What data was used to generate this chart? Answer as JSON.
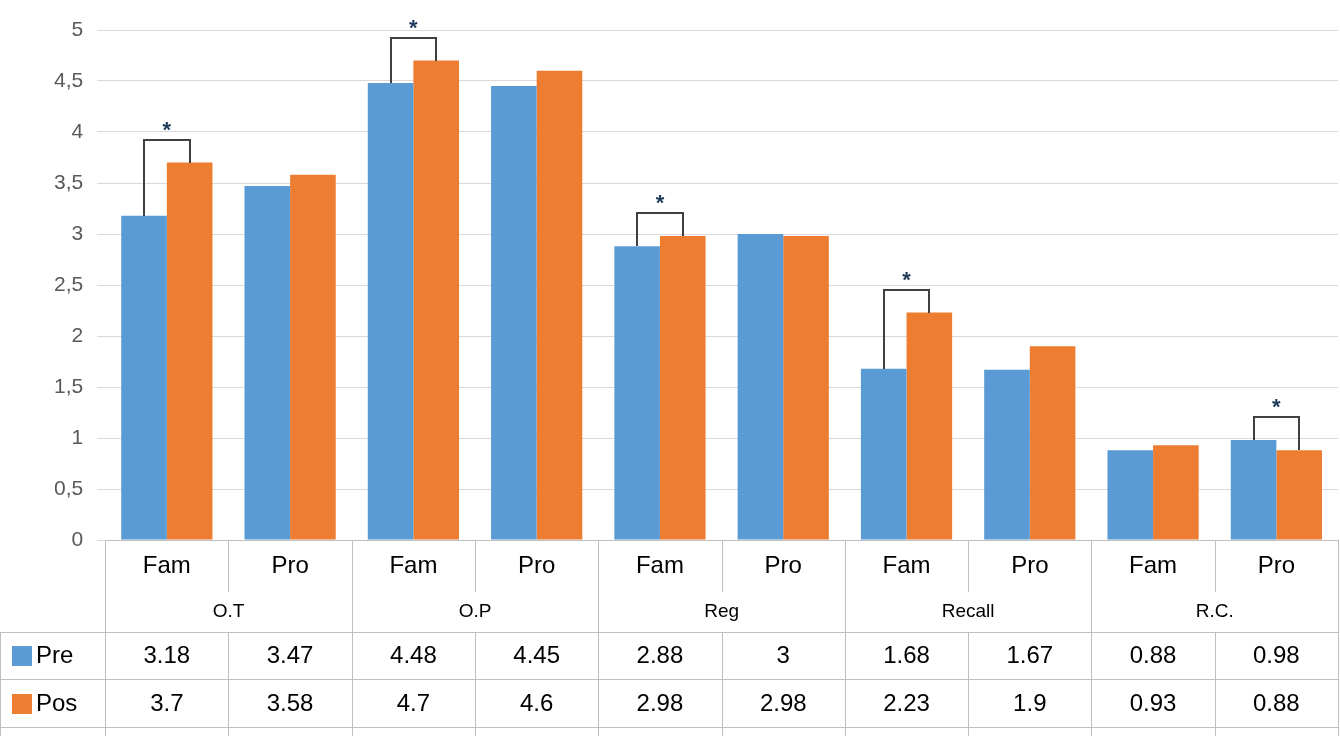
{
  "chart_data": {
    "type": "bar",
    "categories": [
      "Fam",
      "Pro",
      "Fam",
      "Pro",
      "Fam",
      "Pro",
      "Fam",
      "Pro",
      "Fam",
      "Pro"
    ],
    "series": [
      {
        "name": "Pre",
        "color": "#5b9bd5",
        "values": [
          3.18,
          3.47,
          4.48,
          4.45,
          2.88,
          3,
          1.68,
          1.67,
          0.88,
          0.98
        ]
      },
      {
        "name": "Pos",
        "color": "#ed7d31",
        "values": [
          3.7,
          3.58,
          4.7,
          4.6,
          2.98,
          2.98,
          2.23,
          1.9,
          0.93,
          0.88
        ]
      }
    ],
    "ylim": [
      0,
      5
    ],
    "yticks": [
      0,
      {
        "value": 0.5,
        "label": "0,5"
      },
      1,
      {
        "value": 1.5,
        "label": "1,5"
      },
      2,
      {
        "value": 2.5,
        "label": "2,5"
      },
      3,
      {
        "value": 3.5,
        "label": "3,5"
      },
      4,
      {
        "value": 4.5,
        "label": "4,5"
      },
      5
    ],
    "grid": "y",
    "legend": "bottom",
    "data_labels": true,
    "annotations": [
      "O.T",
      "O.P",
      "Reg",
      "Recall",
      "R.C.",
      "*",
      "*",
      "*",
      "*",
      "*"
    ]
  }
}
